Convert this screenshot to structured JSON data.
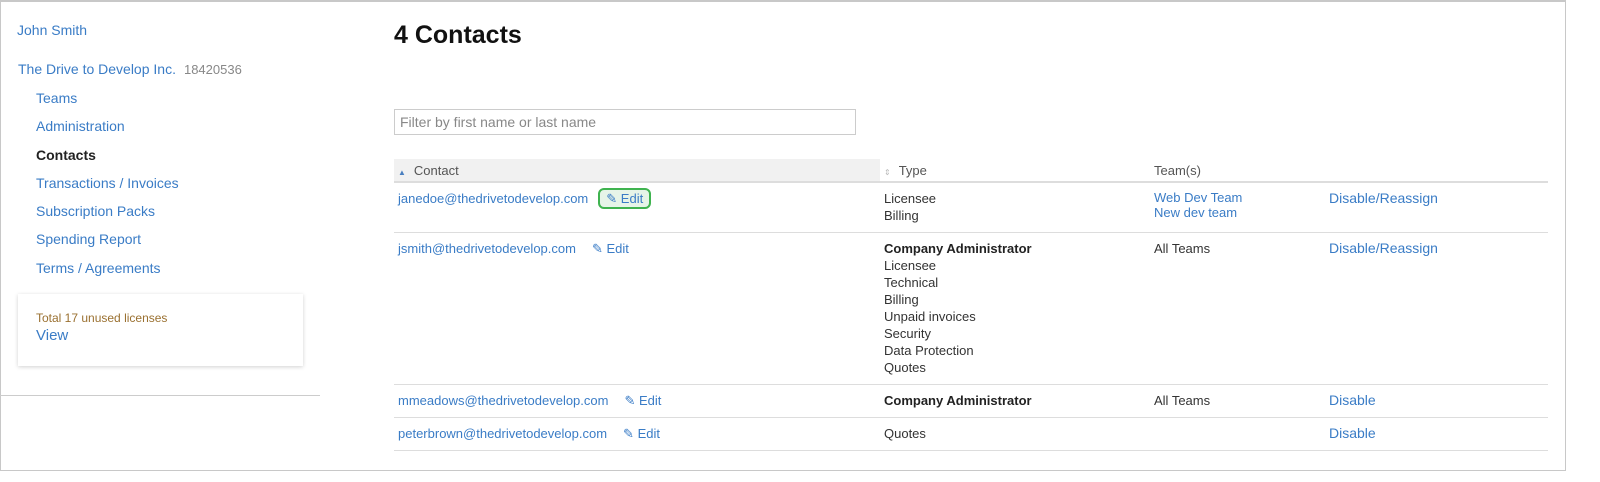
{
  "sidebar": {
    "user": "John Smith",
    "org": "The Drive to Develop Inc.",
    "org_id": "18420536",
    "items": [
      {
        "label": "Teams"
      },
      {
        "label": "Administration"
      },
      {
        "label": "Contacts",
        "active": true
      },
      {
        "label": "Transactions / Invoices"
      },
      {
        "label": "Subscription Packs"
      },
      {
        "label": "Spending Report"
      },
      {
        "label": "Terms / Agreements"
      }
    ],
    "licenses": {
      "text": "Total 17 unused licenses",
      "link": "View"
    }
  },
  "main": {
    "title": "4 Contacts",
    "filter_placeholder": "Filter by first name or last name",
    "columns": {
      "contact": "Contact",
      "type": "Type",
      "teams": "Team(s)"
    },
    "edit_label": "Edit",
    "rows": [
      {
        "email": "janedoe@thedrivetodevelop.com",
        "types": [
          "Licensee",
          "Billing"
        ],
        "teams": [
          "Web Dev Team",
          "New dev team"
        ],
        "action": "Disable/Reassign"
      },
      {
        "email": "jsmith@thedrivetodevelop.com",
        "types": [
          "Company Administrator",
          "Licensee",
          "Technical",
          "Billing",
          "Unpaid invoices",
          "Security",
          "Data Protection",
          "Quotes"
        ],
        "teams": "All Teams",
        "action": "Disable/Reassign"
      },
      {
        "email": "mmeadows@thedrivetodevelop.com",
        "types": [
          "Company Administrator"
        ],
        "teams": "All Teams",
        "action": "Disable"
      },
      {
        "email": "peterbrown@thedrivetodevelop.com",
        "types": [
          "Quotes"
        ],
        "teams": "",
        "action": "Disable"
      }
    ]
  },
  "colors": {
    "link": "#3a7cc6",
    "highlight": "#3fb34f",
    "license_text": "#9a7030"
  }
}
